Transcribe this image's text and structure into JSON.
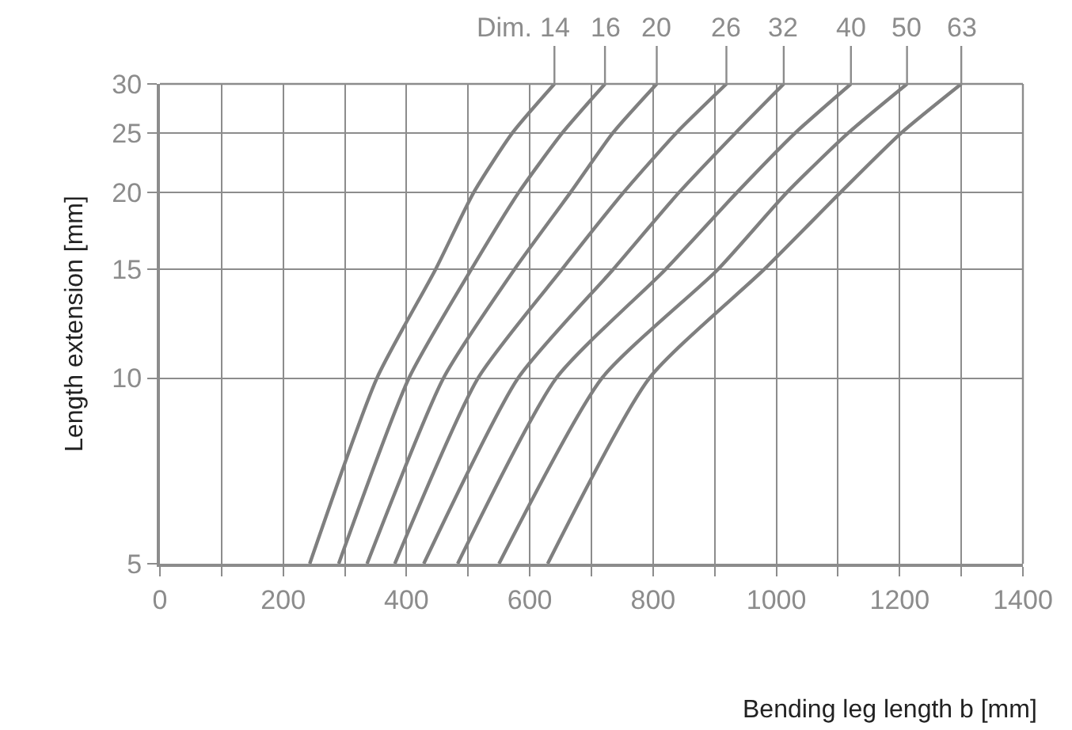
{
  "chart_data": {
    "type": "line",
    "xlabel": "Bending leg length b [mm]",
    "ylabel": "Length extension [mm]",
    "annotations": [
      "Dim."
    ],
    "log": "y",
    "xlim": [
      0,
      1400
    ],
    "xticks": [
      0,
      {
        "value": 100,
        "label": null
      },
      200,
      {
        "value": 300,
        "label": null
      },
      400,
      {
        "value": 500,
        "label": null
      },
      600,
      {
        "value": 700,
        "label": null
      },
      800,
      {
        "value": 900,
        "label": null
      },
      1000,
      {
        "value": 1100,
        "label": null
      },
      1200,
      {
        "value": 1300,
        "label": null
      },
      1400
    ],
    "ylim": [
      5,
      30
    ],
    "yticks": [
      5,
      10,
      15,
      20,
      25,
      30
    ],
    "grid": true,
    "legend": false,
    "marker": "none",
    "line_style": "solid",
    "series": [
      {
        "name": "14",
        "color": "#7f7f7f",
        "x": [
          243,
          352,
          447,
          509,
          572,
          640
        ],
        "values": [
          5,
          10,
          15,
          20,
          25,
          30
        ]
      },
      {
        "name": "16",
        "color": "#7f7f7f",
        "x": [
          290,
          404,
          505,
          582,
          653,
          722
        ],
        "values": [
          5,
          10,
          15,
          20,
          25,
          30
        ]
      },
      {
        "name": "20",
        "color": "#7f7f7f",
        "x": [
          336,
          460,
          575,
          666,
          735,
          806
        ],
        "values": [
          5,
          10,
          15,
          20,
          25,
          30
        ]
      },
      {
        "name": "26",
        "color": "#7f7f7f",
        "x": [
          381,
          516,
          652,
          752,
          838,
          919
        ],
        "values": [
          5,
          10,
          15,
          20,
          25,
          30
        ]
      },
      {
        "name": "32",
        "color": "#7f7f7f",
        "x": [
          428,
          581,
          735,
          842,
          934,
          1012
        ],
        "values": [
          5,
          10,
          15,
          20,
          25,
          30
        ]
      },
      {
        "name": "40",
        "color": "#7f7f7f",
        "x": [
          483,
          643,
          820,
          936,
          1031,
          1121
        ],
        "values": [
          5,
          10,
          15,
          20,
          25,
          30
        ]
      },
      {
        "name": "50",
        "color": "#7f7f7f",
        "x": [
          550,
          717,
          905,
          1017,
          1117,
          1212
        ],
        "values": [
          5,
          10,
          15,
          20,
          25,
          30
        ]
      },
      {
        "name": "63",
        "color": "#7f7f7f",
        "x": [
          629,
          794,
          980,
          1104,
          1203,
          1300
        ],
        "values": [
          5,
          10,
          15,
          20,
          25,
          30
        ]
      }
    ]
  }
}
